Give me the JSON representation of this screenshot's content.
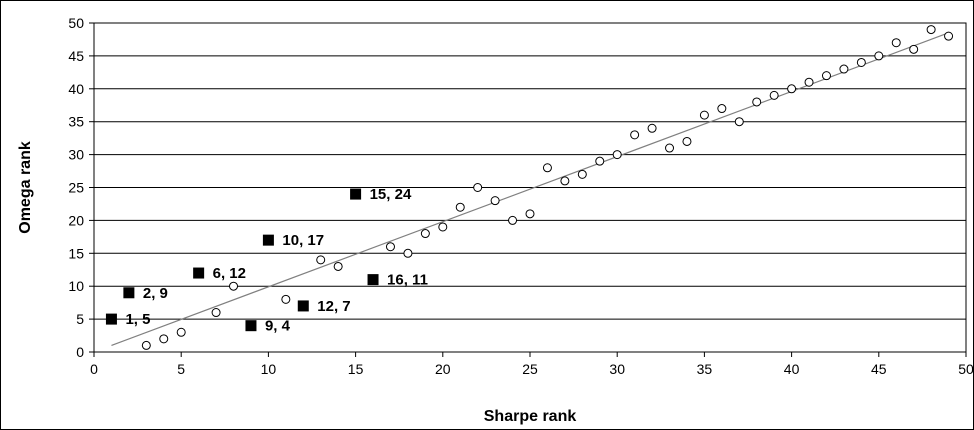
{
  "chart_data": {
    "type": "scatter",
    "title": "",
    "xlabel": "Sharpe rank",
    "ylabel": "Omega rank",
    "xlim": [
      0,
      50
    ],
    "ylim": [
      0,
      50
    ],
    "x_ticks": [
      "0",
      "5",
      "10",
      "15",
      "20",
      "25",
      "30",
      "35",
      "40",
      "45",
      "50"
    ],
    "y_ticks": [
      "0",
      "5",
      "10",
      "15",
      "20",
      "25",
      "30",
      "35",
      "40",
      "45",
      "50"
    ],
    "grid": "horizontal",
    "legend": "none",
    "series": [
      {
        "marker": "open-circle",
        "points": [
          [
            3,
            1
          ],
          [
            4,
            2
          ],
          [
            5,
            3
          ],
          [
            7,
            6
          ],
          [
            8,
            10
          ],
          [
            11,
            8
          ],
          [
            13,
            14
          ],
          [
            14,
            13
          ],
          [
            17,
            16
          ],
          [
            18,
            15
          ],
          [
            19,
            18
          ],
          [
            20,
            19
          ],
          [
            21,
            22
          ],
          [
            22,
            25
          ],
          [
            23,
            23
          ],
          [
            24,
            20
          ],
          [
            25,
            21
          ],
          [
            26,
            28
          ],
          [
            27,
            26
          ],
          [
            28,
            27
          ],
          [
            29,
            29
          ],
          [
            30,
            30
          ],
          [
            31,
            33
          ],
          [
            32,
            34
          ],
          [
            33,
            31
          ],
          [
            34,
            32
          ],
          [
            35,
            36
          ],
          [
            36,
            37
          ],
          [
            37,
            35
          ],
          [
            38,
            38
          ],
          [
            39,
            39
          ],
          [
            40,
            40
          ],
          [
            41,
            41
          ],
          [
            42,
            42
          ],
          [
            43,
            43
          ],
          [
            44,
            44
          ],
          [
            45,
            45
          ],
          [
            46,
            47
          ],
          [
            47,
            46
          ],
          [
            48,
            49
          ],
          [
            49,
            48
          ]
        ]
      },
      {
        "marker": "filled-square",
        "points": [
          {
            "x": 1,
            "y": 5,
            "label": "1, 5"
          },
          {
            "x": 2,
            "y": 9,
            "label": "2, 9"
          },
          {
            "x": 6,
            "y": 12,
            "label": "6, 12"
          },
          {
            "x": 9,
            "y": 4,
            "label": "9, 4"
          },
          {
            "x": 10,
            "y": 17,
            "label": "10, 17"
          },
          {
            "x": 12,
            "y": 7,
            "label": "12, 7"
          },
          {
            "x": 15,
            "y": 24,
            "label": "15, 24"
          },
          {
            "x": 16,
            "y": 11,
            "label": "16, 11"
          }
        ]
      }
    ],
    "trendline": {
      "x": [
        1,
        49
      ],
      "y": [
        1,
        48.5
      ]
    },
    "colors": {
      "marker": "#000000",
      "trendline": "#808080",
      "grid": "#000000"
    }
  }
}
